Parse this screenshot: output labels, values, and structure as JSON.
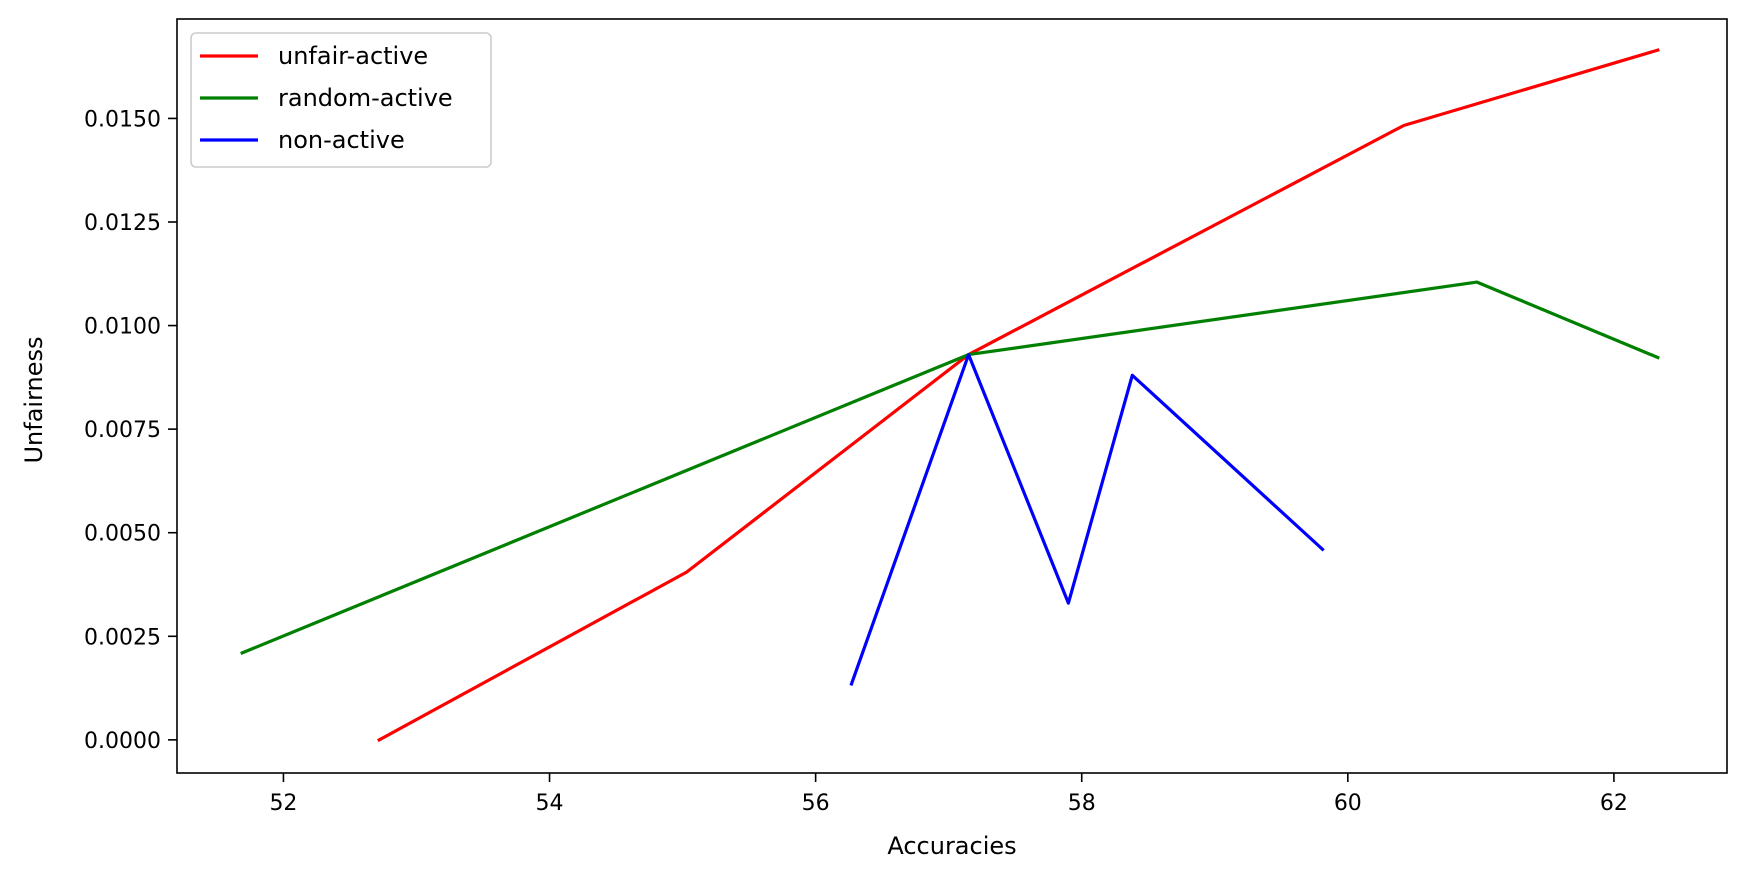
{
  "chart_data": {
    "type": "line",
    "xlabel": "Accuracies",
    "ylabel": "Unfairness",
    "xlim": [
      51.2,
      62.85
    ],
    "ylim": [
      -0.0008,
      0.0174
    ],
    "xticks": [
      52,
      54,
      56,
      58,
      60,
      62
    ],
    "xtick_labels": [
      "52",
      "54",
      "56",
      "58",
      "60",
      "62"
    ],
    "yticks": [
      0.0,
      0.0025,
      0.005,
      0.0075,
      0.01,
      0.0125,
      0.015
    ],
    "ytick_labels": [
      "0.0000",
      "0.0025",
      "0.0050",
      "0.0075",
      "0.0100",
      "0.0125",
      "0.0150"
    ],
    "grid": false,
    "legend_position": "top-left",
    "series": [
      {
        "name": "unfair-active",
        "color": "#ff0000",
        "points": [
          [
            52.72,
            0.0
          ],
          [
            55.03,
            0.00405
          ],
          [
            57.15,
            0.0093
          ],
          [
            60.42,
            0.01483
          ],
          [
            62.33,
            0.01665
          ]
        ]
      },
      {
        "name": "random-active",
        "color": "#008000",
        "points": [
          [
            51.69,
            0.0021
          ],
          [
            57.15,
            0.0093
          ],
          [
            60.97,
            0.01105
          ],
          [
            62.33,
            0.00923
          ]
        ]
      },
      {
        "name": "non-active",
        "color": "#0000ff",
        "points": [
          [
            56.27,
            0.00135
          ],
          [
            57.15,
            0.0093
          ],
          [
            57.9,
            0.0033
          ],
          [
            58.38,
            0.0088
          ],
          [
            59.81,
            0.0046
          ]
        ]
      }
    ]
  }
}
